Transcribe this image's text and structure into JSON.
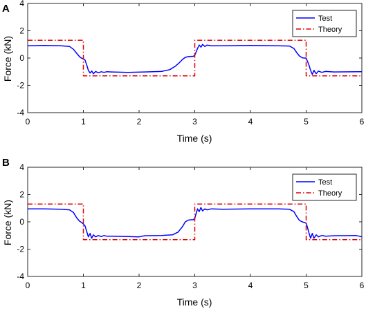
{
  "chart_data": [
    {
      "panel": "A",
      "type": "line",
      "xlabel": "Time (s)",
      "ylabel": "Force (kN)",
      "xlim": [
        0,
        6
      ],
      "ylim": [
        -4,
        4
      ],
      "xticks": [
        "0",
        "1",
        "2",
        "3",
        "4",
        "5",
        "6"
      ],
      "yticks": [
        "4",
        "2",
        "0",
        "-2",
        "-4"
      ],
      "grid": false,
      "legend_position": "top-right",
      "series": [
        {
          "name": "Test",
          "color": "#0000ff",
          "style": "solid",
          "x": [
            0,
            0.3,
            0.6,
            0.75,
            0.82,
            0.88,
            0.93,
            0.97,
            1.0,
            1.03,
            1.06,
            1.09,
            1.12,
            1.15,
            1.18,
            1.22,
            1.27,
            1.32,
            1.37,
            1.42,
            1.5,
            1.8,
            2.1,
            2.4,
            2.55,
            2.65,
            2.72,
            2.78,
            2.83,
            2.88,
            2.93,
            2.97,
            3.0,
            3.02,
            3.05,
            3.08,
            3.11,
            3.14,
            3.18,
            3.22,
            3.3,
            3.5,
            4.0,
            4.5,
            4.7,
            4.78,
            4.83,
            4.88,
            4.93,
            4.97,
            5.0,
            5.02,
            5.05,
            5.08,
            5.11,
            5.14,
            5.18,
            5.22,
            5.28,
            5.35,
            5.5,
            6.0
          ],
          "y": [
            0.9,
            0.92,
            0.9,
            0.85,
            0.65,
            0.35,
            0.1,
            -0.02,
            -0.05,
            -0.15,
            -0.5,
            -0.9,
            -1.1,
            -0.95,
            -1.15,
            -0.98,
            -1.08,
            -1.0,
            -1.05,
            -1.0,
            -1.02,
            -1.05,
            -1.02,
            -0.98,
            -0.85,
            -0.6,
            -0.35,
            -0.1,
            0.05,
            0.1,
            0.12,
            0.12,
            0.2,
            0.4,
            0.7,
            0.95,
            0.8,
            1.0,
            0.85,
            0.95,
            0.9,
            0.9,
            0.92,
            0.9,
            0.88,
            0.7,
            0.4,
            0.15,
            0.02,
            0.0,
            0.0,
            -0.2,
            -0.5,
            -0.9,
            -1.2,
            -0.9,
            -1.15,
            -0.95,
            -1.05,
            -0.98,
            -1.02,
            -1.0
          ]
        },
        {
          "name": "Theory",
          "color": "#e00000",
          "style": "dash-dot",
          "x": [
            0,
            1,
            1,
            3,
            3,
            5,
            5,
            6
          ],
          "y": [
            1.3,
            1.3,
            -1.3,
            -1.3,
            1.3,
            1.3,
            -1.3,
            -1.3
          ]
        }
      ]
    },
    {
      "panel": "B",
      "type": "line",
      "xlabel": "Time (s)",
      "ylabel": "Force (kN)",
      "xlim": [
        0,
        6
      ],
      "ylim": [
        -4,
        4
      ],
      "xticks": [
        "0",
        "1",
        "2",
        "3",
        "4",
        "5",
        "6"
      ],
      "yticks": [
        "4",
        "2",
        "0",
        "-2",
        "-4"
      ],
      "grid": false,
      "legend_position": "top-right",
      "series": [
        {
          "name": "Test",
          "color": "#0000ff",
          "style": "solid",
          "x": [
            0,
            0.3,
            0.6,
            0.75,
            0.82,
            0.88,
            0.93,
            0.97,
            1.0,
            1.03,
            1.06,
            1.09,
            1.12,
            1.15,
            1.18,
            1.22,
            1.27,
            1.32,
            1.37,
            1.42,
            1.5,
            1.8,
            2.0,
            2.1,
            2.4,
            2.6,
            2.7,
            2.78,
            2.83,
            2.88,
            2.93,
            2.97,
            3.0,
            3.02,
            3.05,
            3.08,
            3.11,
            3.14,
            3.18,
            3.22,
            3.3,
            3.5,
            4.0,
            4.5,
            4.7,
            4.78,
            4.83,
            4.88,
            4.93,
            4.97,
            5.0,
            5.02,
            5.05,
            5.08,
            5.11,
            5.14,
            5.18,
            5.22,
            5.28,
            5.35,
            5.5,
            5.9,
            6.0
          ],
          "y": [
            0.95,
            0.95,
            0.92,
            0.88,
            0.7,
            0.3,
            0.05,
            -0.05,
            -0.15,
            -0.3,
            -0.7,
            -1.1,
            -0.85,
            -1.2,
            -0.95,
            -1.1,
            -1.0,
            -1.08,
            -1.0,
            -1.05,
            -1.05,
            -1.08,
            -1.1,
            -1.02,
            -1.0,
            -0.95,
            -0.75,
            -0.35,
            0.0,
            0.12,
            0.15,
            0.15,
            0.25,
            0.55,
            0.95,
            0.75,
            1.05,
            0.8,
            0.95,
            0.88,
            0.95,
            0.92,
            0.95,
            0.95,
            0.92,
            0.75,
            0.4,
            0.1,
            0.0,
            -0.05,
            -0.1,
            -0.35,
            -0.8,
            -1.2,
            -0.85,
            -1.2,
            -0.95,
            -1.1,
            -1.0,
            -1.05,
            -1.02,
            -1.0,
            -1.1
          ]
        },
        {
          "name": "Theory",
          "color": "#e00000",
          "style": "dash-dot",
          "x": [
            0,
            1,
            1,
            3,
            3,
            5,
            5,
            6
          ],
          "y": [
            1.3,
            1.3,
            -1.3,
            -1.3,
            1.3,
            1.3,
            -1.3,
            -1.3
          ]
        }
      ]
    }
  ]
}
